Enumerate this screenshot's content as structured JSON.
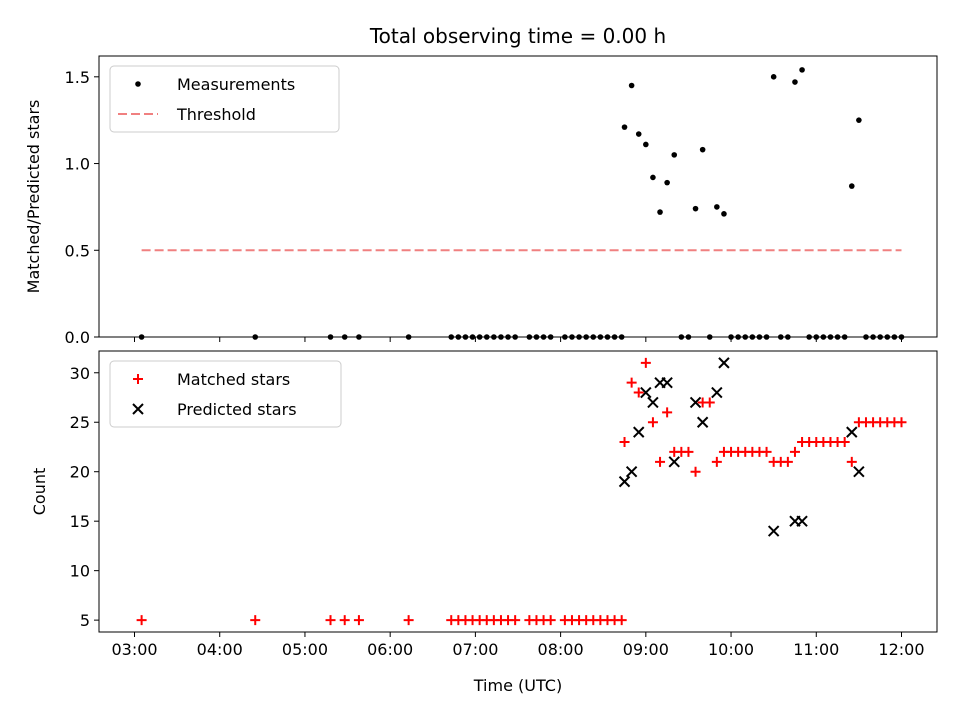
{
  "chart_data": {
    "type": "scatter",
    "title": "Total observing time = 0.00 h",
    "xlabel": "Time (UTC)",
    "xlim": [
      "02:35",
      "12:25"
    ],
    "x_tick_labels": [
      "03:00",
      "04:00",
      "05:00",
      "06:00",
      "07:00",
      "08:00",
      "09:00",
      "10:00",
      "11:00",
      "12:00"
    ],
    "shared_x": true,
    "panels": [
      {
        "id": "ratio",
        "ylabel": "Matched/Predicted stars",
        "ylim": [
          0,
          1.62
        ],
        "y_ticks": [
          0.0,
          0.5,
          1.0,
          1.5
        ],
        "y_tick_labels": [
          "0.0",
          "0.5",
          "1.0",
          "1.5"
        ],
        "legend": {
          "position": "upper left"
        },
        "series": [
          {
            "name": "Measurements",
            "marker": "dot",
            "color": "#000000",
            "points": [
              [
                "03:05",
                0
              ],
              [
                "04:25",
                0
              ],
              [
                "05:18",
                0
              ],
              [
                "05:28",
                0
              ],
              [
                "05:38",
                0
              ],
              [
                "06:13",
                0
              ],
              [
                "06:43",
                0
              ],
              [
                "06:48",
                0
              ],
              [
                "06:53",
                0
              ],
              [
                "06:58",
                0
              ],
              [
                "07:03",
                0
              ],
              [
                "07:08",
                0
              ],
              [
                "07:13",
                0
              ],
              [
                "07:18",
                0
              ],
              [
                "07:23",
                0
              ],
              [
                "07:28",
                0
              ],
              [
                "07:38",
                0
              ],
              [
                "07:43",
                0
              ],
              [
                "07:48",
                0
              ],
              [
                "07:53",
                0
              ],
              [
                "08:03",
                0
              ],
              [
                "08:08",
                0
              ],
              [
                "08:13",
                0
              ],
              [
                "08:18",
                0
              ],
              [
                "08:23",
                0
              ],
              [
                "08:28",
                0
              ],
              [
                "08:33",
                0
              ],
              [
                "08:38",
                0
              ],
              [
                "08:43",
                0
              ],
              [
                "08:45",
                1.21
              ],
              [
                "08:50",
                1.45
              ],
              [
                "08:55",
                1.17
              ],
              [
                "09:00",
                1.11
              ],
              [
                "09:05",
                0.92
              ],
              [
                "09:10",
                0.72
              ],
              [
                "09:15",
                0.89
              ],
              [
                "09:20",
                1.05
              ],
              [
                "09:25",
                0
              ],
              [
                "09:30",
                0
              ],
              [
                "09:35",
                0.74
              ],
              [
                "09:40",
                1.08
              ],
              [
                "09:45",
                0
              ],
              [
                "09:50",
                0.75
              ],
              [
                "09:55",
                0.71
              ],
              [
                "10:00",
                0
              ],
              [
                "10:05",
                0
              ],
              [
                "10:10",
                0
              ],
              [
                "10:15",
                0
              ],
              [
                "10:20",
                0
              ],
              [
                "10:25",
                0
              ],
              [
                "10:30",
                1.5
              ],
              [
                "10:35",
                0
              ],
              [
                "10:40",
                0
              ],
              [
                "10:45",
                1.47
              ],
              [
                "10:50",
                1.54
              ],
              [
                "10:55",
                0
              ],
              [
                "11:00",
                0
              ],
              [
                "11:05",
                0
              ],
              [
                "11:10",
                0
              ],
              [
                "11:15",
                0
              ],
              [
                "11:20",
                0
              ],
              [
                "11:25",
                0.87
              ],
              [
                "11:30",
                1.25
              ],
              [
                "11:35",
                0
              ],
              [
                "11:40",
                0
              ],
              [
                "11:45",
                0
              ],
              [
                "11:50",
                0
              ],
              [
                "11:55",
                0
              ],
              [
                "12:00",
                0
              ]
            ]
          },
          {
            "name": "Threshold",
            "style": "dashed-line",
            "color": "#f08080",
            "points": [
              [
                "03:05",
                0.5
              ],
              [
                "12:00",
                0.5
              ]
            ]
          }
        ]
      },
      {
        "id": "count",
        "ylabel": "Count",
        "ylim": [
          3.8,
          32.2
        ],
        "y_ticks": [
          5,
          10,
          15,
          20,
          25,
          30
        ],
        "y_tick_labels": [
          "5",
          "10",
          "15",
          "20",
          "25",
          "30"
        ],
        "legend": {
          "position": "upper left"
        },
        "series": [
          {
            "name": "Matched stars",
            "marker": "plus",
            "color": "#ff0000",
            "points": [
              [
                "03:05",
                5
              ],
              [
                "04:25",
                5
              ],
              [
                "05:18",
                5
              ],
              [
                "05:28",
                5
              ],
              [
                "05:38",
                5
              ],
              [
                "06:13",
                5
              ],
              [
                "06:43",
                5
              ],
              [
                "06:48",
                5
              ],
              [
                "06:53",
                5
              ],
              [
                "06:58",
                5
              ],
              [
                "07:03",
                5
              ],
              [
                "07:08",
                5
              ],
              [
                "07:13",
                5
              ],
              [
                "07:18",
                5
              ],
              [
                "07:23",
                5
              ],
              [
                "07:28",
                5
              ],
              [
                "07:38",
                5
              ],
              [
                "07:43",
                5
              ],
              [
                "07:48",
                5
              ],
              [
                "07:53",
                5
              ],
              [
                "08:03",
                5
              ],
              [
                "08:08",
                5
              ],
              [
                "08:13",
                5
              ],
              [
                "08:18",
                5
              ],
              [
                "08:23",
                5
              ],
              [
                "08:28",
                5
              ],
              [
                "08:33",
                5
              ],
              [
                "08:38",
                5
              ],
              [
                "08:43",
                5
              ],
              [
                "08:45",
                23
              ],
              [
                "08:50",
                29
              ],
              [
                "08:55",
                28
              ],
              [
                "09:00",
                31
              ],
              [
                "09:05",
                25
              ],
              [
                "09:10",
                21
              ],
              [
                "09:15",
                26
              ],
              [
                "09:20",
                22
              ],
              [
                "09:25",
                22
              ],
              [
                "09:30",
                22
              ],
              [
                "09:35",
                20
              ],
              [
                "09:40",
                27
              ],
              [
                "09:45",
                27
              ],
              [
                "09:50",
                21
              ],
              [
                "09:55",
                22
              ],
              [
                "10:00",
                22
              ],
              [
                "10:05",
                22
              ],
              [
                "10:10",
                22
              ],
              [
                "10:15",
                22
              ],
              [
                "10:20",
                22
              ],
              [
                "10:25",
                22
              ],
              [
                "10:30",
                21
              ],
              [
                "10:35",
                21
              ],
              [
                "10:40",
                21
              ],
              [
                "10:45",
                22
              ],
              [
                "10:50",
                23
              ],
              [
                "10:55",
                23
              ],
              [
                "11:00",
                23
              ],
              [
                "11:05",
                23
              ],
              [
                "11:10",
                23
              ],
              [
                "11:15",
                23
              ],
              [
                "11:20",
                23
              ],
              [
                "11:25",
                21
              ],
              [
                "11:30",
                25
              ],
              [
                "11:35",
                25
              ],
              [
                "11:40",
                25
              ],
              [
                "11:45",
                25
              ],
              [
                "11:50",
                25
              ],
              [
                "11:55",
                25
              ],
              [
                "12:00",
                25
              ]
            ]
          },
          {
            "name": "Predicted stars",
            "marker": "x",
            "color": "#000000",
            "points": [
              [
                "08:45",
                19
              ],
              [
                "08:50",
                20
              ],
              [
                "08:55",
                24
              ],
              [
                "09:00",
                28
              ],
              [
                "09:05",
                27
              ],
              [
                "09:10",
                29
              ],
              [
                "09:15",
                29
              ],
              [
                "09:20",
                21
              ],
              [
                "09:35",
                27
              ],
              [
                "09:40",
                25
              ],
              [
                "09:50",
                28
              ],
              [
                "09:55",
                31
              ],
              [
                "10:30",
                14
              ],
              [
                "10:45",
                15
              ],
              [
                "10:50",
                15
              ],
              [
                "11:25",
                24
              ],
              [
                "11:30",
                20
              ]
            ]
          }
        ]
      }
    ]
  }
}
